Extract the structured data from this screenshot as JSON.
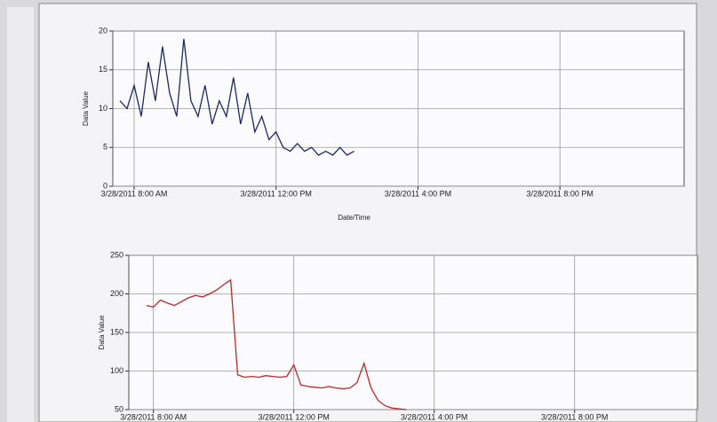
{
  "chart_data": [
    {
      "type": "line",
      "y_label": "Data Value",
      "x_label": "Date/Time",
      "x": [
        7.6,
        7.8,
        8.0,
        8.2,
        8.4,
        8.6,
        8.8,
        9.0,
        9.2,
        9.4,
        9.6,
        9.8,
        10.0,
        10.2,
        10.4,
        10.6,
        10.8,
        11.0,
        11.2,
        11.4,
        11.6,
        11.8,
        12.0,
        12.2,
        12.4,
        12.6,
        12.8,
        13.0,
        13.2,
        13.4,
        13.6,
        13.8,
        14.0,
        14.2
      ],
      "series": [
        {
          "name": "Data Value",
          "color": "#1c2a66",
          "values": [
            11,
            10,
            13,
            9,
            16,
            11,
            18,
            12,
            9,
            19,
            11,
            9,
            13,
            8,
            11,
            9,
            14,
            8,
            12,
            7,
            9,
            6,
            7,
            5,
            4.5,
            5.5,
            4.5,
            5,
            4,
            4.5,
            4,
            5,
            4,
            4.5
          ]
        }
      ],
      "xlim": [
        7.4,
        23.5
      ],
      "xticks": [
        {
          "value": 8,
          "label": "3/28/2011 8:00 AM"
        },
        {
          "value": 12,
          "label": "3/28/2011 12:00 PM"
        },
        {
          "value": 16,
          "label": "3/28/2011 4:00 PM"
        },
        {
          "value": 20,
          "label": "3/28/2011 8:00 PM"
        }
      ],
      "ylim": [
        0,
        20
      ],
      "yticks": [
        0,
        5,
        10,
        15,
        20
      ],
      "grid": true
    },
    {
      "type": "line",
      "y_label": "Data Value",
      "x": [
        7.8,
        8.0,
        8.2,
        8.4,
        8.6,
        8.8,
        9.0,
        9.2,
        9.4,
        9.6,
        9.8,
        10.0,
        10.2,
        10.4,
        10.6,
        10.8,
        11.0,
        11.2,
        11.4,
        11.6,
        11.8,
        12.0,
        12.2,
        12.4,
        12.6,
        12.8,
        13.0,
        13.2,
        13.4,
        13.6,
        13.8,
        14.0,
        14.2,
        14.4,
        14.6,
        14.8,
        15.0,
        15.2
      ],
      "series": [
        {
          "name": "Data Value",
          "color": "#c0262c",
          "values": [
            185,
            183,
            192,
            188,
            185,
            190,
            195,
            198,
            196,
            200,
            205,
            212,
            218,
            95,
            92,
            93,
            92,
            94,
            93,
            92,
            93,
            108,
            82,
            80,
            79,
            78,
            80,
            78,
            77,
            78,
            85,
            110,
            78,
            62,
            55,
            52,
            51,
            50
          ]
        }
      ],
      "xlim": [
        7.3,
        23.5
      ],
      "xticks": [
        {
          "value": 8,
          "label": "3/28/2011 8:00 AM"
        },
        {
          "value": 12,
          "label": "3/28/2011 12:00 PM"
        },
        {
          "value": 16,
          "label": "3/28/2011 4:00 PM"
        },
        {
          "value": 20,
          "label": "3/28/2011 8:00 PM"
        }
      ],
      "ylim": [
        50,
        250
      ],
      "yticks": [
        50,
        100,
        150,
        200,
        250
      ],
      "grid": true
    }
  ]
}
